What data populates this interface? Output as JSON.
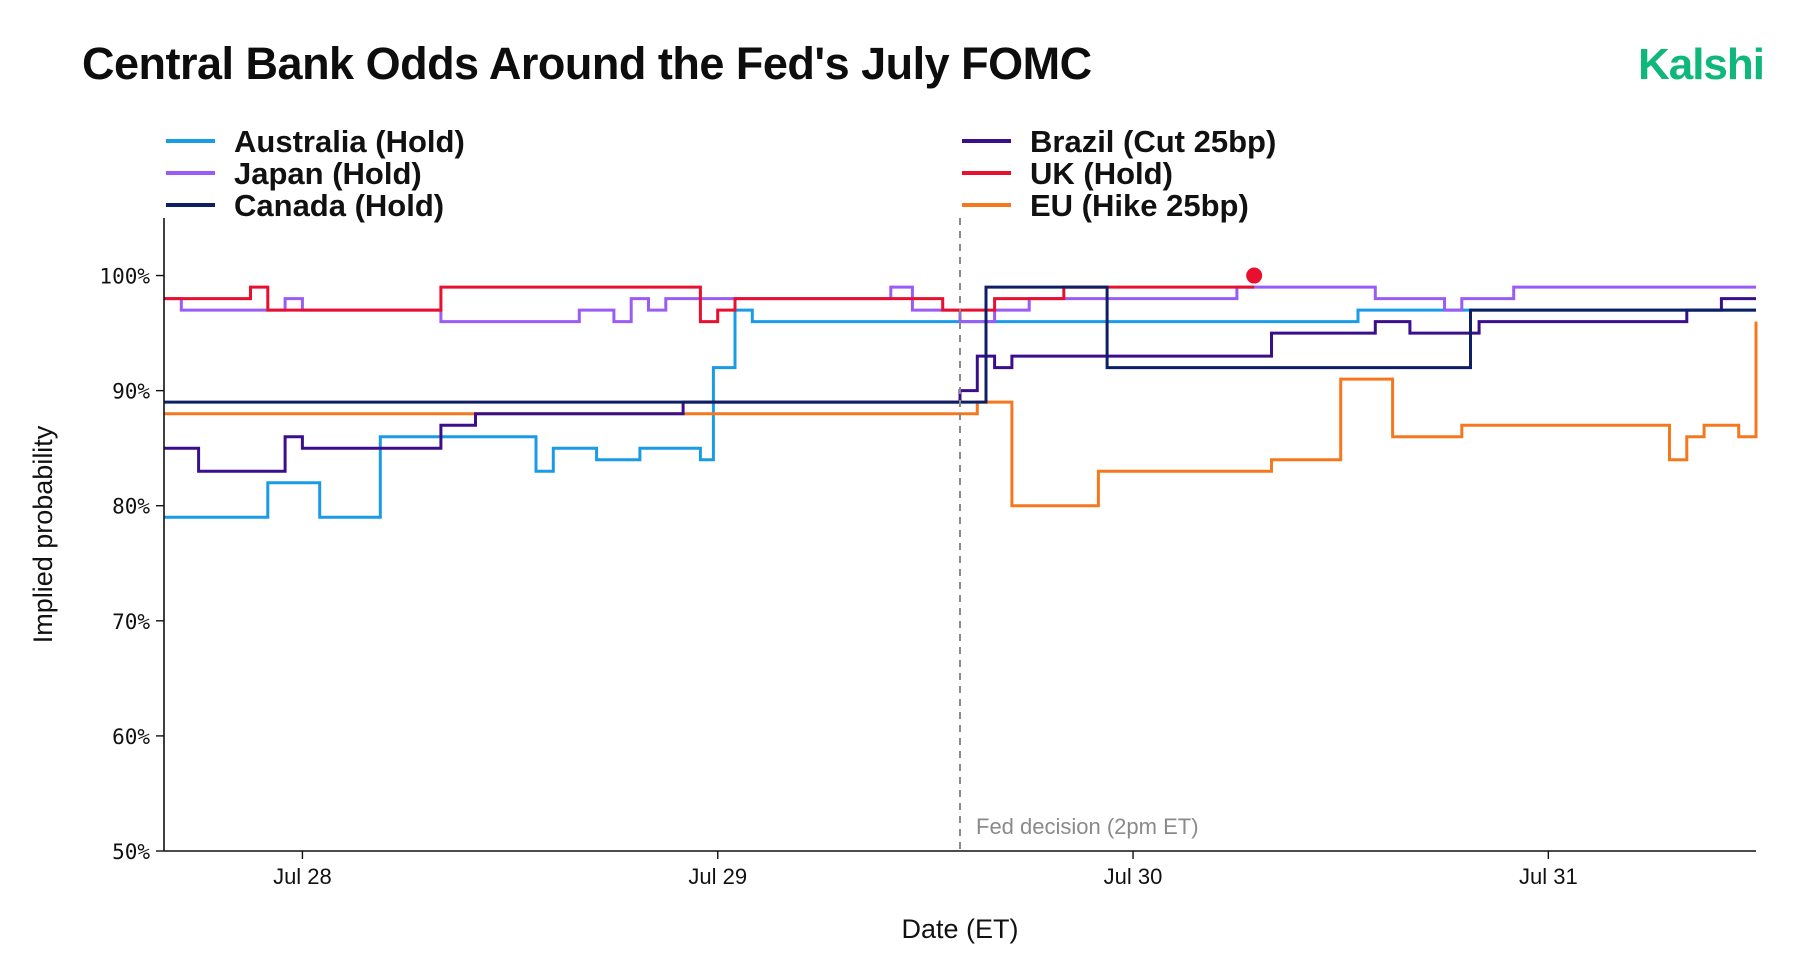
{
  "header": {
    "title": "Central Bank Odds Around the Fed's July FOMC",
    "brand": "Kalshi"
  },
  "colors": {
    "brand": "#0fb87a"
  },
  "chart_data": {
    "type": "line",
    "step": true,
    "title": "Central Bank Odds Around the Fed's July FOMC",
    "xlabel": "Date (ET)",
    "ylabel": "Implied probability",
    "xlim": [
      "Jul 27 16:00",
      "Jul 31 12:00"
    ],
    "x_ticks": [
      {
        "label": "Jul 28",
        "at": "Jul 28 00:00"
      },
      {
        "label": "Jul 29",
        "at": "Jul 29 00:00"
      },
      {
        "label": "Jul 30",
        "at": "Jul 30 00:00"
      },
      {
        "label": "Jul 31",
        "at": "Jul 31 00:00"
      }
    ],
    "ylim": [
      50,
      105
    ],
    "y_ticks": [
      {
        "label": "50%",
        "value": 50
      },
      {
        "label": "60%",
        "value": 60
      },
      {
        "label": "70%",
        "value": 70
      },
      {
        "label": "80%",
        "value": 80
      },
      {
        "label": "90%",
        "value": 90
      },
      {
        "label": "100%",
        "value": 100
      }
    ],
    "grid": false,
    "legend_position": "top",
    "annotation": {
      "label": "Fed decision (2pm ET)",
      "x": "Jul 29 14:00",
      "color": "#8a8a8a"
    },
    "series": [
      {
        "name": "Australia (Hold)",
        "color": "#1a9be6",
        "points": [
          [
            "Jul 27 16:00",
            79
          ],
          [
            "Jul 27 22:00",
            82
          ],
          [
            "Jul 28 01:00",
            79
          ],
          [
            "Jul 28 04:30",
            86
          ],
          [
            "Jul 28 13:30",
            83
          ],
          [
            "Jul 28 14:30",
            85
          ],
          [
            "Jul 28 17:00",
            84
          ],
          [
            "Jul 28 19:30",
            85
          ],
          [
            "Jul 28 23:00",
            84
          ],
          [
            "Jul 28 23:45",
            92
          ],
          [
            "Jul 29 01:00",
            97
          ],
          [
            "Jul 29 02:00",
            96
          ],
          [
            "Jul 30 13:00",
            97
          ],
          [
            "Jul 31 12:00",
            97
          ]
        ]
      },
      {
        "name": "Japan (Hold)",
        "color": "#9a5cf5",
        "points": [
          [
            "Jul 27 16:00",
            98
          ],
          [
            "Jul 27 17:00",
            97
          ],
          [
            "Jul 27 23:00",
            98
          ],
          [
            "Jul 28 00:00",
            97
          ],
          [
            "Jul 28 08:00",
            96
          ],
          [
            "Jul 28 16:00",
            97
          ],
          [
            "Jul 28 18:00",
            96
          ],
          [
            "Jul 28 19:00",
            98
          ],
          [
            "Jul 28 20:00",
            97
          ],
          [
            "Jul 28 21:00",
            98
          ],
          [
            "Jul 29 01:00",
            98
          ],
          [
            "Jul 29 10:00",
            99
          ],
          [
            "Jul 29 11:15",
            97
          ],
          [
            "Jul 29 14:00",
            96
          ],
          [
            "Jul 29 16:00",
            97
          ],
          [
            "Jul 29 18:00",
            98
          ],
          [
            "Jul 30 06:00",
            99
          ],
          [
            "Jul 30 14:00",
            98
          ],
          [
            "Jul 30 18:00",
            97
          ],
          [
            "Jul 30 19:00",
            98
          ],
          [
            "Jul 30 22:00",
            99
          ],
          [
            "Jul 31 12:00",
            99
          ]
        ]
      },
      {
        "name": "Canada (Hold)",
        "color": "#0f1f66",
        "points": [
          [
            "Jul 27 16:00",
            89
          ],
          [
            "Jul 29 15:30",
            99
          ],
          [
            "Jul 29 22:30",
            92
          ],
          [
            "Jul 30 19:30",
            97
          ],
          [
            "Jul 31 12:00",
            97
          ]
        ]
      },
      {
        "name": "Brazil (Cut 25bp)",
        "color": "#3b0f8c",
        "points": [
          [
            "Jul 27 16:00",
            85
          ],
          [
            "Jul 27 18:00",
            83
          ],
          [
            "Jul 27 23:00",
            86
          ],
          [
            "Jul 28 00:00",
            85
          ],
          [
            "Jul 28 08:00",
            87
          ],
          [
            "Jul 28 10:00",
            88
          ],
          [
            "Jul 28 22:00",
            89
          ],
          [
            "Jul 29 14:00",
            90
          ],
          [
            "Jul 29 15:00",
            93
          ],
          [
            "Jul 29 16:00",
            92
          ],
          [
            "Jul 29 17:00",
            93
          ],
          [
            "Jul 30 08:00",
            95
          ],
          [
            "Jul 30 14:00",
            96
          ],
          [
            "Jul 30 16:00",
            95
          ],
          [
            "Jul 30 20:00",
            96
          ],
          [
            "Jul 31 08:00",
            97
          ],
          [
            "Jul 31 10:00",
            98
          ],
          [
            "Jul 31 12:00",
            98
          ]
        ]
      },
      {
        "name": "UK (Hold)",
        "color": "#e8102e",
        "points": [
          [
            "Jul 27 16:00",
            98
          ],
          [
            "Jul 27 21:00",
            99
          ],
          [
            "Jul 27 22:00",
            97
          ],
          [
            "Jul 28 08:00",
            99
          ],
          [
            "Jul 28 23:00",
            96
          ],
          [
            "Jul 29 00:00",
            97
          ],
          [
            "Jul 29 01:00",
            98
          ],
          [
            "Jul 29 13:00",
            97
          ],
          [
            "Jul 29 16:00",
            98
          ],
          [
            "Jul 29 20:00",
            99
          ],
          [
            "Jul 30 07:00",
            99
          ]
        ],
        "end_marker": [
          "Jul 30 07:00",
          100
        ]
      },
      {
        "name": "EU (Hike 25bp)",
        "color": "#f5781e",
        "points": [
          [
            "Jul 27 16:00",
            88
          ],
          [
            "Jul 29 15:00",
            89
          ],
          [
            "Jul 29 17:00",
            80
          ],
          [
            "Jul 29 22:00",
            83
          ],
          [
            "Jul 30 08:00",
            84
          ],
          [
            "Jul 30 12:00",
            91
          ],
          [
            "Jul 30 15:00",
            86
          ],
          [
            "Jul 30 19:00",
            87
          ],
          [
            "Jul 31 07:00",
            84
          ],
          [
            "Jul 31 08:00",
            86
          ],
          [
            "Jul 31 09:00",
            87
          ],
          [
            "Jul 31 11:00",
            86
          ],
          [
            "Jul 31 12:00",
            96
          ]
        ]
      }
    ]
  }
}
